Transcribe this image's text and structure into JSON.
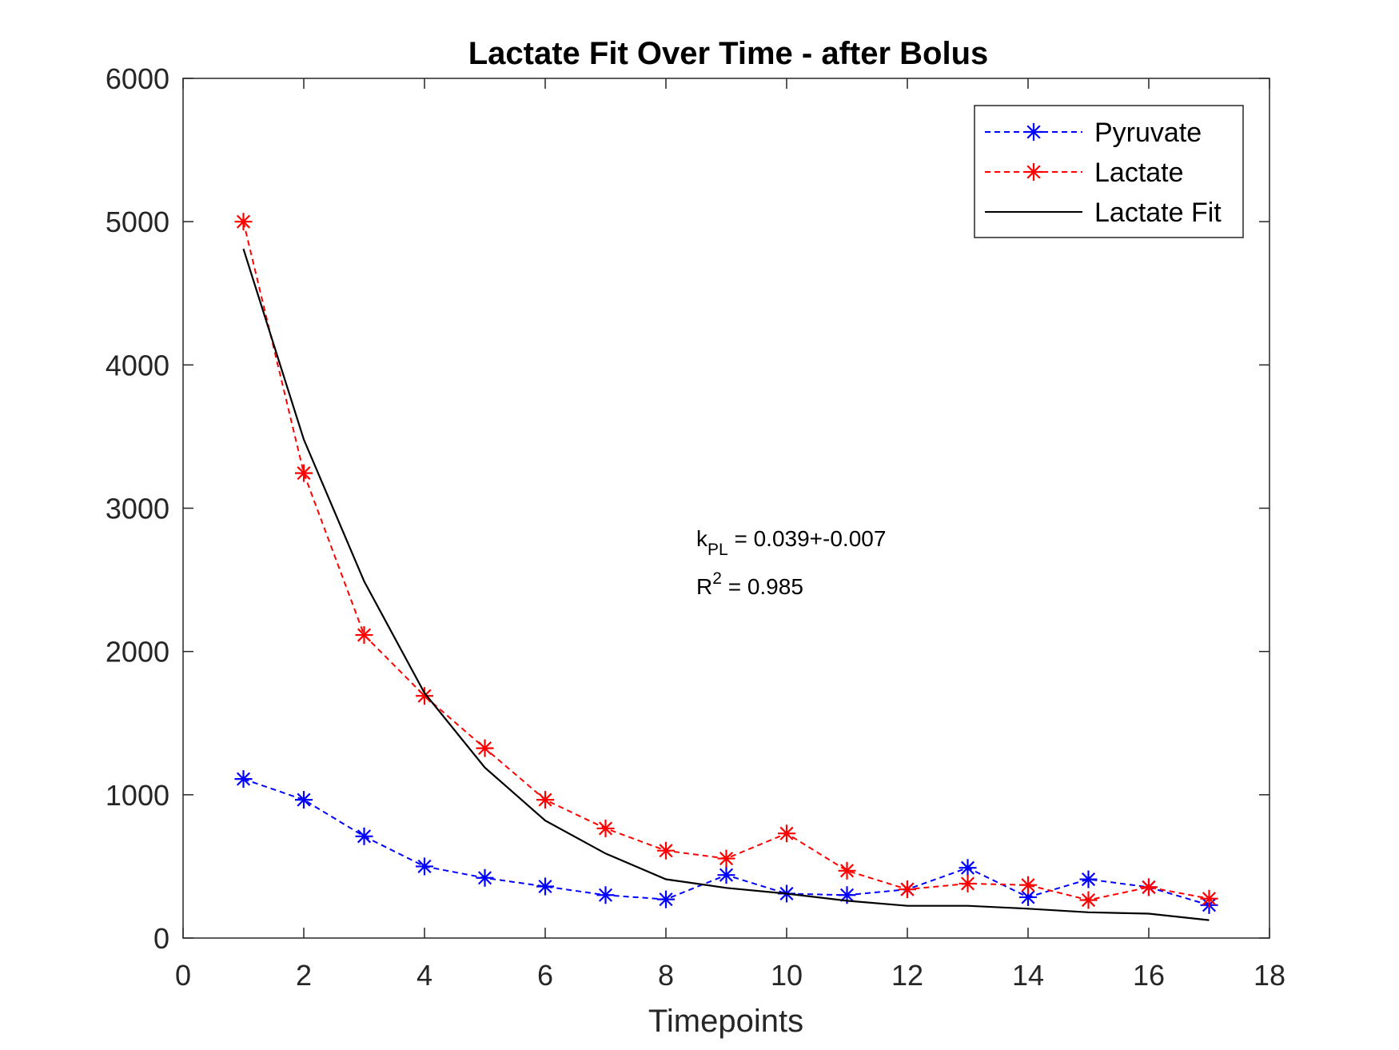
{
  "chart_data": {
    "type": "line",
    "title": "Lactate Fit Over Time - after Bolus",
    "xlabel": "Timepoints",
    "ylabel": "",
    "xlim": [
      0,
      18
    ],
    "ylim": [
      0,
      6000
    ],
    "xticks": [
      "0",
      "2",
      "4",
      "6",
      "8",
      "10",
      "12",
      "14",
      "16",
      "18"
    ],
    "yticks": [
      "0",
      "1000",
      "2000",
      "3000",
      "4000",
      "5000",
      "6000"
    ],
    "grid": false,
    "legend_position": "top-right",
    "x": [
      1,
      2,
      3,
      4,
      5,
      6,
      7,
      8,
      9,
      10,
      11,
      12,
      13,
      14,
      15,
      16,
      17
    ],
    "series": [
      {
        "name": "Pyruvate",
        "color": "#0000ff",
        "line_style": "dashed",
        "marker": "asterisk",
        "values": [
          1110,
          965,
          710,
          500,
          420,
          360,
          300,
          270,
          440,
          310,
          300,
          340,
          490,
          285,
          410,
          355,
          230
        ]
      },
      {
        "name": "Lactate",
        "color": "#ff0000",
        "line_style": "dashed",
        "marker": "asterisk",
        "values": [
          5000,
          3245,
          2115,
          1690,
          1325,
          965,
          765,
          610,
          555,
          730,
          470,
          340,
          380,
          370,
          265,
          355,
          275
        ]
      },
      {
        "name": "Lactate Fit",
        "color": "#000000",
        "line_style": "solid",
        "marker": "none",
        "values": [
          4810,
          3480,
          2490,
          1710,
          1190,
          820,
          590,
          410,
          350,
          310,
          260,
          225,
          225,
          205,
          180,
          170,
          125
        ]
      }
    ],
    "annotation": {
      "kpl_prefix": "k",
      "kpl_sub": "PL",
      "kpl_rest": " = 0.039+-0.007",
      "r2_prefix": "R",
      "r2_sup": "2",
      "r2_rest": " = 0.985"
    }
  }
}
